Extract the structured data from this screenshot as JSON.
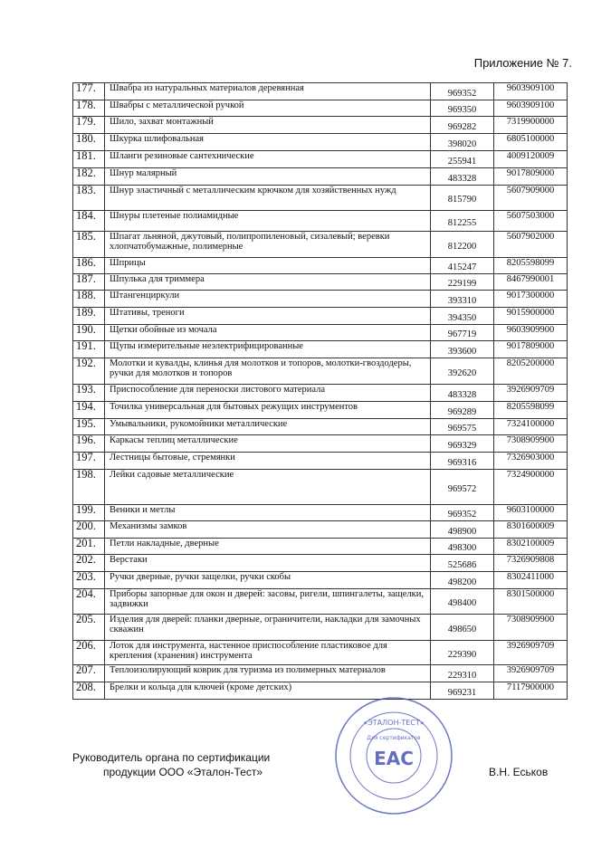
{
  "header": {
    "title": "Приложение № 7."
  },
  "table": {
    "rows": [
      [
        "177.",
        "Швабра из натуральных материалов деревянная",
        "969352",
        "9603909100"
      ],
      [
        "178.",
        "Швабры с металлической ручкой",
        "969350",
        "9603909100"
      ],
      [
        "179.",
        "Шило, захват монтажный",
        "969282",
        "7319900000"
      ],
      [
        "180.",
        "Шкурка шлифовальная",
        "398020",
        "6805100000"
      ],
      [
        "181.",
        "Шланги резиновые сантехнические",
        "255941",
        "4009120009"
      ],
      [
        "182.",
        "Шнур малярный",
        "483328",
        "9017809000"
      ],
      [
        "183.",
        "Шнур эластичный с металлическим крючком для хозяйственных нужд",
        "815790",
        "5607909000"
      ],
      [
        "184.",
        "Шнуры плетеные полиамидные",
        "812255",
        "5607503000"
      ],
      [
        "185.",
        "Шпагат льняной, джутовый, полипропиленовый, сизалевый; веревки хлопчатобумажные, полимерные",
        "812200",
        "5607902000"
      ],
      [
        "186.",
        "Шприцы",
        "415247",
        "8205598099"
      ],
      [
        "187.",
        "Шпулька для триммера",
        "229199",
        "8467990001"
      ],
      [
        "188.",
        "Штангенциркули",
        "393310",
        "9017300000"
      ],
      [
        "189.",
        "Штативы, треноги",
        "394350",
        "9015900000"
      ],
      [
        "190.",
        "Щетки обойные из мочала",
        "967719",
        "9603909900"
      ],
      [
        "191.",
        "Щупы измерительные неэлектрифицированные",
        "393600",
        "9017809000"
      ],
      [
        "192.",
        "Молотки и кувалды, клинья для молотков и топоров, молотки-гвоздодеры, ручки для молотков и топоров",
        "392620",
        "8205200000"
      ],
      [
        "193.",
        "Приспособление для переноски листового материала",
        "483328",
        "3926909709"
      ],
      [
        "194.",
        "Точилка универсальная для бытовых режущих инструментов",
        "969289",
        "8205598099"
      ],
      [
        "195.",
        "Умывальники, рукомойники металлические",
        "969575",
        "7324100000"
      ],
      [
        "196.",
        "Каркасы теплиц металлические",
        "969329",
        "7308909900"
      ],
      [
        "197.",
        "Лестницы бытовые, стремянки",
        "969316",
        "7326903000"
      ],
      [
        "198.",
        "Лейки садовые металлические",
        "969572",
        "7324900000"
      ],
      [
        "199.",
        "Веники и метлы",
        "969352",
        "9603100000"
      ],
      [
        "200.",
        "Механизмы замков",
        "498900",
        "8301600009"
      ],
      [
        "201.",
        "Петли накладные, дверные",
        "498300",
        "8302100009"
      ],
      [
        "202.",
        "Верстаки",
        "525686",
        "7326909808"
      ],
      [
        "203.",
        "Ручки дверные, ручки защелки, ручки скобы",
        "498200",
        "8302411000"
      ],
      [
        "204.",
        "Приборы запорные для окон и дверей: засовы, ригели, шпингалеты, защелки, задвижки",
        "498400",
        "8301500000"
      ],
      [
        "205.",
        "Изделия для дверей: планки дверные, ограничители, накладки для замочных скважин",
        "498650",
        "7308909900"
      ],
      [
        "206.",
        "Лоток для инструмента, настенное приспособление пластиковое для крепления (хранения) инструмента",
        "229390",
        "3926909709"
      ],
      [
        "207.",
        "Теплоизолирующий коврик для туризма из полимерных материалов",
        "229310",
        "3926909709"
      ],
      [
        "208.",
        "Брелки и кольца для ключей (кроме детских)",
        "969231",
        "7117900000"
      ]
    ]
  },
  "footer": {
    "position_line1": "Руководитель органа по сертификации",
    "position_line2": "продукции ООО «Эталон-Тест»",
    "signer": "В.Н. Еськов"
  },
  "stamp": {
    "name": "«ЭТАЛОН-ТЕСТ»",
    "purpose": "Для сертификатов",
    "mark": "ЕАС"
  }
}
